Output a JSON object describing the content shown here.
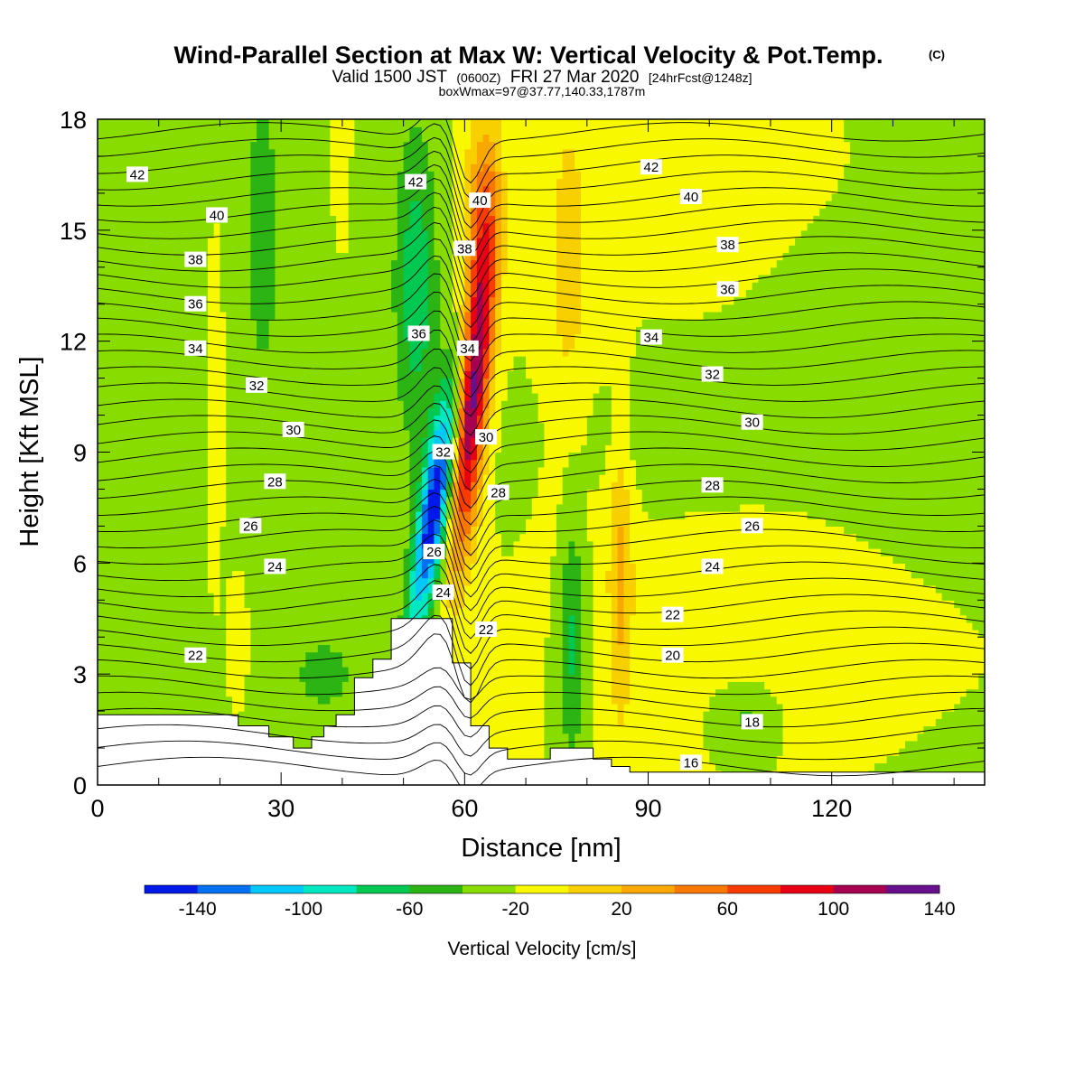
{
  "title": {
    "main": "Wind-Parallel Section at Max W: Vertical Velocity & Pot.Temp.",
    "copyright": "(C)",
    "line2_a": "Valid 1500 JST",
    "line2_b": "(0600Z)",
    "line2_c": "FRI 27 Mar 2020",
    "line2_d": "[24hrFcst@1248z]",
    "line3": "boxWmax=97@37.77,140.33,1787m"
  },
  "chart_data": {
    "type": "heatmap",
    "xlabel": "Distance [nm]",
    "ylabel": "Height [Kft MSL]",
    "xlim": [
      0,
      145
    ],
    "ylim": [
      0,
      18
    ],
    "x_ticks": [
      0,
      30,
      60,
      90,
      120
    ],
    "y_ticks": [
      0,
      3,
      6,
      9,
      12,
      15,
      18
    ],
    "x_tick_labels": [
      "0",
      "30",
      "60",
      "90",
      "120"
    ],
    "y_tick_labels": [
      "0",
      "3",
      "6",
      "9",
      "12",
      "15",
      "18"
    ],
    "colorbar": {
      "title": "Vertical Velocity [cm/s]",
      "levels": [
        -160,
        -140,
        -120,
        -100,
        -80,
        -60,
        -40,
        -20,
        0,
        20,
        40,
        60,
        80,
        100,
        120,
        140,
        160
      ],
      "tick_values": [
        -140,
        -100,
        -60,
        -20,
        20,
        60,
        100,
        140
      ],
      "tick_labels": [
        "-140",
        "-100",
        "-60",
        "-20",
        "20",
        "60",
        "100",
        "140"
      ],
      "colors": [
        "#0018e8",
        "#0070f0",
        "#00c8f8",
        "#00e8c0",
        "#00c850",
        "#2cb414",
        "#88dc00",
        "#f8f800",
        "#f8d000",
        "#f8a800",
        "#f87800",
        "#f83c00",
        "#e80014",
        "#a80050",
        "#68108c"
      ]
    },
    "terrain_kft": [
      [
        0,
        1.9
      ],
      [
        23,
        1.9
      ],
      [
        23,
        1.6
      ],
      [
        28,
        1.6
      ],
      [
        28,
        1.3
      ],
      [
        32,
        1.3
      ],
      [
        32,
        1.0
      ],
      [
        35,
        1.0
      ],
      [
        35,
        1.3
      ],
      [
        37,
        1.3
      ],
      [
        37,
        1.6
      ],
      [
        39,
        1.6
      ],
      [
        39,
        1.9
      ],
      [
        42,
        1.9
      ],
      [
        42,
        2.9
      ],
      [
        45,
        2.9
      ],
      [
        45,
        3.4
      ],
      [
        48,
        3.4
      ],
      [
        48,
        4.5
      ],
      [
        58,
        4.5
      ],
      [
        58,
        3.3
      ],
      [
        61,
        3.3
      ],
      [
        61,
        1.6
      ],
      [
        64,
        1.6
      ],
      [
        64,
        1.0
      ],
      [
        67,
        1.0
      ],
      [
        67,
        0.7
      ],
      [
        74,
        0.7
      ],
      [
        74,
        1.0
      ],
      [
        81,
        1.0
      ],
      [
        81,
        0.7
      ],
      [
        84,
        0.7
      ],
      [
        84,
        0.5
      ],
      [
        87,
        0.5
      ],
      [
        87,
        0.35
      ],
      [
        145,
        0.35
      ]
    ],
    "theta_contour_labels": [
      {
        "value": "42",
        "x": 6.5,
        "y": 16.5
      },
      {
        "value": "40",
        "x": 19.5,
        "y": 15.4
      },
      {
        "value": "38",
        "x": 16,
        "y": 14.2
      },
      {
        "value": "36",
        "x": 16,
        "y": 13.0
      },
      {
        "value": "34",
        "x": 16,
        "y": 11.8
      },
      {
        "value": "32",
        "x": 26,
        "y": 10.8
      },
      {
        "value": "30",
        "x": 32,
        "y": 9.6
      },
      {
        "value": "28",
        "x": 29,
        "y": 8.2
      },
      {
        "value": "26",
        "x": 25,
        "y": 7.0
      },
      {
        "value": "24",
        "x": 29,
        "y": 5.9
      },
      {
        "value": "22",
        "x": 16,
        "y": 3.5
      },
      {
        "value": "42",
        "x": 52,
        "y": 16.3
      },
      {
        "value": "40",
        "x": 62.5,
        "y": 15.8
      },
      {
        "value": "38",
        "x": 60,
        "y": 14.5
      },
      {
        "value": "36",
        "x": 52.5,
        "y": 12.2
      },
      {
        "value": "34",
        "x": 60.5,
        "y": 11.8
      },
      {
        "value": "32",
        "x": 56.5,
        "y": 9.0
      },
      {
        "value": "30",
        "x": 63.5,
        "y": 9.4
      },
      {
        "value": "28",
        "x": 65.5,
        "y": 7.9
      },
      {
        "value": "26",
        "x": 55,
        "y": 6.3
      },
      {
        "value": "24",
        "x": 56.5,
        "y": 5.2
      },
      {
        "value": "22",
        "x": 63.5,
        "y": 4.2
      },
      {
        "value": "42",
        "x": 90.5,
        "y": 16.7
      },
      {
        "value": "40",
        "x": 97,
        "y": 15.9
      },
      {
        "value": "38",
        "x": 103,
        "y": 14.6
      },
      {
        "value": "36",
        "x": 103,
        "y": 13.4
      },
      {
        "value": "34",
        "x": 90.5,
        "y": 12.1
      },
      {
        "value": "32",
        "x": 100.5,
        "y": 11.1
      },
      {
        "value": "30",
        "x": 107,
        "y": 9.8
      },
      {
        "value": "28",
        "x": 100.5,
        "y": 8.1
      },
      {
        "value": "26",
        "x": 107,
        "y": 7.0
      },
      {
        "value": "24",
        "x": 100.5,
        "y": 5.9
      },
      {
        "value": "22",
        "x": 94,
        "y": 4.6
      },
      {
        "value": "20",
        "x": 94,
        "y": 3.5
      },
      {
        "value": "18",
        "x": 107,
        "y": 1.7
      },
      {
        "value": "16",
        "x": 97,
        "y": 0.6
      }
    ]
  }
}
